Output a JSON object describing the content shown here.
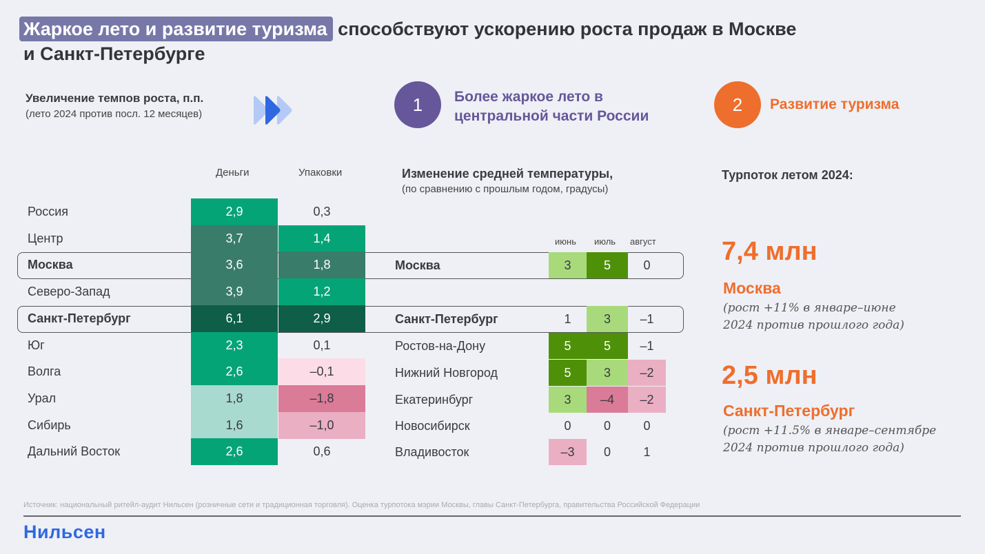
{
  "title": {
    "highlight": "Жаркое лето и развитие туризма",
    "rest": "способствуют ускорению роста продаж в Москве",
    "line2": "и Санкт-Петербурге"
  },
  "growth_section": {
    "title": "Увеличение темпов роста, п.п.",
    "subtitle": "(лето 2024 против посл. 12 месяцев)",
    "icon": "fast-forward-chevrons-icon",
    "columns": [
      "Деньги",
      "Упаковки"
    ],
    "rows": [
      {
        "label": "Россия",
        "money": "2,9",
        "packs": "0,3",
        "bold": false
      },
      {
        "label": "Центр",
        "money": "3,7",
        "packs": "1,4",
        "bold": false
      },
      {
        "label": "Москва",
        "money": "3,6",
        "packs": "1,8",
        "bold": true
      },
      {
        "label": "Северо-Запад",
        "money": "3,9",
        "packs": "1,2",
        "bold": false
      },
      {
        "label": "Санкт-Петербург",
        "money": "6,1",
        "packs": "2,9",
        "bold": true
      },
      {
        "label": "Юг",
        "money": "2,3",
        "packs": "0,1",
        "bold": false
      },
      {
        "label": "Волга",
        "money": "2,6",
        "packs": "–0,1",
        "bold": false
      },
      {
        "label": "Урал",
        "money": "1,8",
        "packs": "–1,8",
        "bold": false
      },
      {
        "label": "Сибирь",
        "money": "1,6",
        "packs": "–1,0",
        "bold": false
      },
      {
        "label": "Дальний Восток",
        "money": "2,6",
        "packs": "0,6",
        "bold": false
      }
    ]
  },
  "factor1": {
    "number": "1",
    "text_line1": "Более жаркое лето в",
    "text_line2": "центральной части России",
    "color": "#66579A"
  },
  "factor2": {
    "number": "2",
    "text": "Развитие туризма",
    "color": "#EE6E2D"
  },
  "temperature": {
    "title": "Изменение средней температуры,",
    "subtitle": "(по сравнению с прошлым годом, градусы)",
    "months": [
      "июнь",
      "июль",
      "август"
    ],
    "rows": [
      {
        "label": "Москва",
        "values": [
          "3",
          "5",
          "0"
        ],
        "bold": true
      },
      {
        "label": "Санкт-Петербург",
        "values": [
          "1",
          "3",
          "–1"
        ],
        "bold": true
      },
      {
        "label": "Ростов-на-Дону",
        "values": [
          "5",
          "5",
          "–1"
        ],
        "bold": false
      },
      {
        "label": "Нижний Новгород",
        "values": [
          "5",
          "3",
          "–2"
        ],
        "bold": false
      },
      {
        "label": "Екатеринбург",
        "values": [
          "3",
          "–4",
          "–2"
        ],
        "bold": false
      },
      {
        "label": "Новосибирск",
        "values": [
          "0",
          "0",
          "0"
        ],
        "bold": false
      },
      {
        "label": "Владивосток",
        "values": [
          "–3",
          "0",
          "1"
        ],
        "bold": false
      }
    ]
  },
  "tourism": {
    "title": "Турпоток летом 2024:",
    "items": [
      {
        "value": "7,4 млн",
        "city": "Москва",
        "note_line1": "(рост +11% в январе–июне",
        "note_line2": "2024 против прошлого года)"
      },
      {
        "value": "2,5 млн",
        "city": "Санкт-Петербург",
        "note_line1": "(рост +11.5% в январе–сентябре",
        "note_line2": "2024 против прошлого года)"
      }
    ]
  },
  "footer": {
    "source": "Источник: национальный ритейл-аудит Нильсен (розничные сети и традиционная торговля). Оценка турпотока мэрии Москвы, главы Санкт-Петербурга, правительства Российской Федерации",
    "logo": "Нильсен"
  },
  "colors": {
    "accent_purple": "#66579A",
    "accent_orange": "#EE6E2D",
    "logo_blue": "#2F68E0"
  }
}
